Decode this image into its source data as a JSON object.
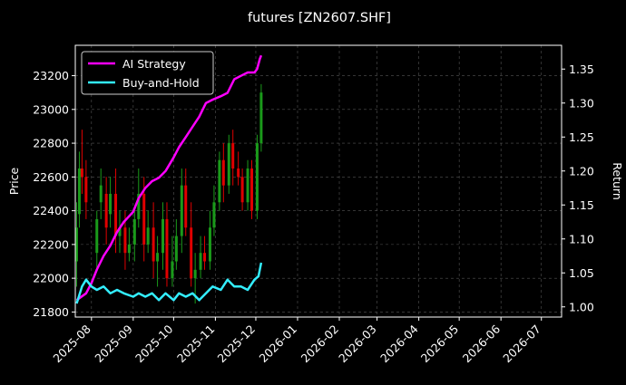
{
  "chart_data": {
    "type": "line",
    "title": "futures [ZN2607.SHF]",
    "xlabel": "",
    "ylabel": "Price",
    "ylabel_right": "Return",
    "x_ticks": [
      "2025-08",
      "2025-09",
      "2025-10",
      "2025-11",
      "2025-12",
      "2026-01",
      "2026-02",
      "2026-03",
      "2026-04",
      "2026-05",
      "2026-06",
      "2026-07"
    ],
    "x_range": [
      "2025-07-20",
      "2026-07-16"
    ],
    "y_left_ticks": [
      21800,
      22000,
      22200,
      22400,
      22600,
      22800,
      23000,
      23200
    ],
    "y_left_range": [
      21770,
      23380
    ],
    "y_right_ticks": [
      1.0,
      1.05,
      1.1,
      1.15,
      1.2,
      1.25,
      1.3,
      1.35
    ],
    "y_right_range": [
      0.985,
      1.385
    ],
    "grid": true,
    "legend_position": "top-left",
    "colors": {
      "background": "#000000",
      "text": "#ffffff",
      "grid": "#555555",
      "up": "#1a9a1a",
      "down": "#e00000"
    },
    "series": [
      {
        "name": "AI Strategy",
        "axis": "right",
        "color": "#ff00ff",
        "x": [
          "2025-07-21",
          "2025-07-28",
          "2025-08-01",
          "2025-08-05",
          "2025-08-10",
          "2025-08-15",
          "2025-08-20",
          "2025-08-25",
          "2025-09-01",
          "2025-09-05",
          "2025-09-10",
          "2025-09-15",
          "2025-09-20",
          "2025-09-25",
          "2025-10-01",
          "2025-10-05",
          "2025-10-10",
          "2025-10-15",
          "2025-10-20",
          "2025-10-25",
          "2025-10-30",
          "2025-11-05",
          "2025-11-10",
          "2025-11-15",
          "2025-11-20",
          "2025-11-25",
          "2025-11-30",
          "2025-12-02",
          "2025-12-04",
          "2025-12-05"
        ],
        "values": [
          1.01,
          1.02,
          1.035,
          1.055,
          1.075,
          1.09,
          1.11,
          1.125,
          1.14,
          1.16,
          1.175,
          1.185,
          1.19,
          1.2,
          1.22,
          1.235,
          1.25,
          1.265,
          1.28,
          1.3,
          1.305,
          1.31,
          1.315,
          1.335,
          1.34,
          1.345,
          1.345,
          1.35,
          1.365,
          1.37
        ]
      },
      {
        "name": "Buy-and-Hold",
        "axis": "right",
        "color": "#33eeff",
        "x": [
          "2025-07-21",
          "2025-07-25",
          "2025-07-28",
          "2025-08-01",
          "2025-08-05",
          "2025-08-10",
          "2025-08-15",
          "2025-08-20",
          "2025-08-25",
          "2025-09-01",
          "2025-09-05",
          "2025-09-10",
          "2025-09-15",
          "2025-09-20",
          "2025-09-25",
          "2025-10-01",
          "2025-10-05",
          "2025-10-10",
          "2025-10-15",
          "2025-10-20",
          "2025-10-25",
          "2025-10-30",
          "2025-11-05",
          "2025-11-10",
          "2025-11-15",
          "2025-11-20",
          "2025-11-25",
          "2025-11-30",
          "2025-12-03",
          "2025-12-05"
        ],
        "values": [
          1.005,
          1.03,
          1.04,
          1.03,
          1.025,
          1.03,
          1.02,
          1.025,
          1.02,
          1.015,
          1.02,
          1.015,
          1.02,
          1.01,
          1.02,
          1.01,
          1.02,
          1.015,
          1.02,
          1.01,
          1.02,
          1.03,
          1.025,
          1.04,
          1.03,
          1.03,
          1.025,
          1.04,
          1.045,
          1.065
        ]
      }
    ],
    "candles": {
      "axis": "left",
      "x": [
        "2025-07-21",
        "2025-07-23",
        "2025-07-25",
        "2025-07-28",
        "2025-08-05",
        "2025-08-08",
        "2025-08-12",
        "2025-08-15",
        "2025-08-19",
        "2025-08-22",
        "2025-08-26",
        "2025-08-29",
        "2025-09-02",
        "2025-09-05",
        "2025-09-09",
        "2025-09-12",
        "2025-09-16",
        "2025-09-19",
        "2025-09-23",
        "2025-09-26",
        "2025-09-30",
        "2025-10-03",
        "2025-10-07",
        "2025-10-10",
        "2025-10-14",
        "2025-10-17",
        "2025-10-21",
        "2025-10-24",
        "2025-10-28",
        "2025-10-31",
        "2025-11-04",
        "2025-11-07",
        "2025-11-11",
        "2025-11-14",
        "2025-11-18",
        "2025-11-21",
        "2025-11-25",
        "2025-11-28",
        "2025-12-02",
        "2025-12-05"
      ],
      "open": [
        22100,
        22380,
        22650,
        22600,
        22150,
        22450,
        22500,
        22380,
        22500,
        22250,
        22300,
        22150,
        22200,
        22350,
        22500,
        22200,
        22300,
        22100,
        22150,
        22350,
        22000,
        22100,
        22250,
        22550,
        22300,
        22000,
        22050,
        22150,
        22100,
        22300,
        22450,
        22700,
        22550,
        22800,
        22650,
        22600,
        22450,
        22650,
        22400,
        22800
      ],
      "close": [
        22300,
        22650,
        22600,
        22450,
        22350,
        22550,
        22300,
        22500,
        22250,
        22300,
        22150,
        22200,
        22350,
        22500,
        22200,
        22300,
        22100,
        22150,
        22350,
        22000,
        22100,
        22250,
        22550,
        22300,
        22000,
        22050,
        22150,
        22100,
        22300,
        22450,
        22700,
        22550,
        22800,
        22650,
        22600,
        22450,
        22650,
        22400,
        22800,
        23100
      ],
      "high": [
        22450,
        22750,
        22880,
        22700,
        22400,
        22650,
        22600,
        22600,
        22650,
        22400,
        22400,
        22300,
        22400,
        22650,
        22600,
        22400,
        22450,
        22250,
        22450,
        22450,
        22250,
        22350,
        22650,
        22650,
        22450,
        22150,
        22250,
        22250,
        22400,
        22550,
        22750,
        22800,
        22850,
        22880,
        22750,
        22650,
        22700,
        22700,
        22850,
        23150
      ],
      "low": [
        21950,
        22300,
        22500,
        22350,
        22050,
        22350,
        22200,
        22300,
        22150,
        22150,
        22050,
        22100,
        22100,
        22300,
        22100,
        22150,
        22000,
        21950,
        22050,
        21950,
        21950,
        22050,
        22150,
        22250,
        21950,
        21850,
        22000,
        22050,
        22050,
        22250,
        22400,
        22450,
        22500,
        22550,
        22550,
        22400,
        22400,
        22350,
        22350,
        22750
      ]
    }
  }
}
